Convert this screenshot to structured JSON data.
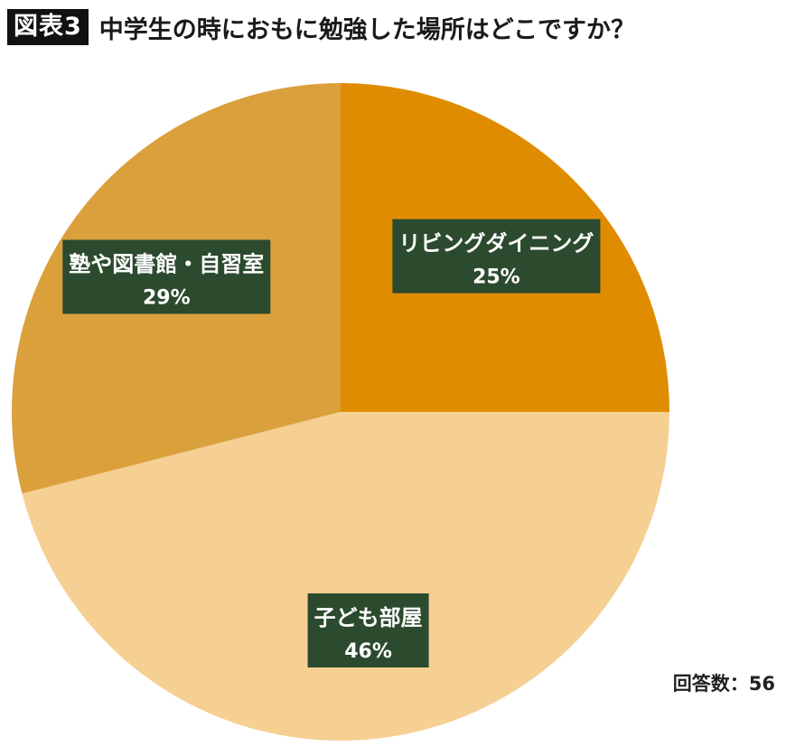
{
  "figure_label": "図表3",
  "chart_data": {
    "type": "pie",
    "title": "中学生の時におもに勉強した場所はどこですか？",
    "slices": [
      {
        "label": "リビングダイニング",
        "value": 25,
        "value_label": "25%",
        "color": "#E08C00"
      },
      {
        "label": "子ども部屋",
        "value": 46,
        "value_label": "46%",
        "color": "#F6CF93"
      },
      {
        "label": "塾や図書館・自習室",
        "value": 29,
        "value_label": "29%",
        "color": "#DAA03C"
      }
    ],
    "label_box_color": "#2C4A2E",
    "label_text_color": "#ffffff",
    "start_angle": "12 o'clock",
    "direction": "clockwise"
  },
  "footnote": "回答数：56"
}
